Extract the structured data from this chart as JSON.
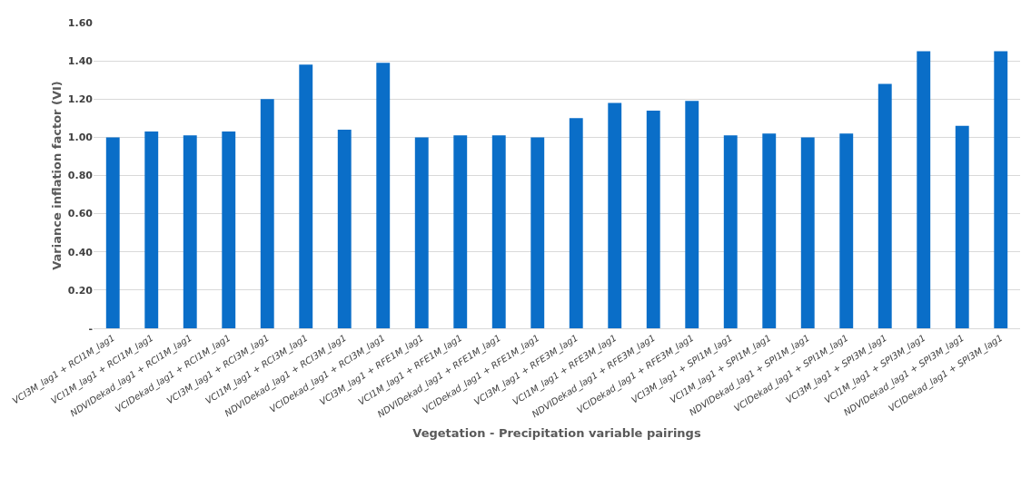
{
  "chart_data": {
    "type": "bar",
    "xlabel": "Vegetation - Precipitation variable pairings",
    "ylabel": "Variance inflation factor (VI)",
    "categories": [
      "VCI3M_lag1 + RCI1M_lag1",
      "VCI1M_lag1 + RCI1M_lag1",
      "NDVIDekad_lag1 + RCI1M_lag1",
      "VCIDekad_lag1 + RCI1M_lag1",
      "VCI3M_lag1 + RCI3M_lag1",
      "VCI1M_lag1 + RCI3M_lag1",
      "NDVIDekad_lag1 + RCI3M_lag1",
      "VCIDekad_lag1 + RCI3M_lag1",
      "VCI3M_lag1 + RFE1M_lag1",
      "VCI1M_lag1 + RFE1M_lag1",
      "NDVIDekad_lag1 + RFE1M_lag1",
      "VCIDekad_lag1 + RFE1M_lag1",
      "VCI3M_lag1 + RFE3M_lag1",
      "VCI1M_lag1 + RFE3M_lag1",
      "NDVIDekad_lag1 + RFE3M_lag1",
      "VCIDekad_lag1 + RFE3M_lag1",
      "VCI3M_lag1 + SPI1M_lag1",
      "VCI1M_lag1 + SPI1M_lag1",
      "NDVIDekad_lag1 + SPI1M_lag1",
      "VCIDekad_lag1 + SPI1M_lag1",
      "VCI3M_lag1 + SPI3M_lag1",
      "VCI1M_lag1 + SPI3M_lag1",
      "NDVIDekad_lag1 + SPI3M_lag1",
      "VCIDekad_lag1 + SPI3M_lag1"
    ],
    "values": [
      1.0,
      1.03,
      1.01,
      1.03,
      1.2,
      1.38,
      1.04,
      1.39,
      1.0,
      1.01,
      1.01,
      1.0,
      1.1,
      1.18,
      1.14,
      1.19,
      1.01,
      1.02,
      1.0,
      1.02,
      1.28,
      1.45,
      1.06,
      1.45
    ],
    "color": "#0a6ec8",
    "ylim": [
      0,
      1.6
    ],
    "yticks": [
      {
        "value": 0,
        "label": "-"
      },
      {
        "value": 0.2,
        "label": "0.20"
      },
      {
        "value": 0.4,
        "label": "0.40"
      },
      {
        "value": 0.6,
        "label": "0.60"
      },
      {
        "value": 0.8,
        "label": "0.80"
      },
      {
        "value": 1.0,
        "label": "1.00"
      },
      {
        "value": 1.2,
        "label": "1.20"
      },
      {
        "value": 1.4,
        "label": "1.40"
      },
      {
        "value": 1.6,
        "label": "1.60"
      }
    ],
    "grid": "y"
  }
}
